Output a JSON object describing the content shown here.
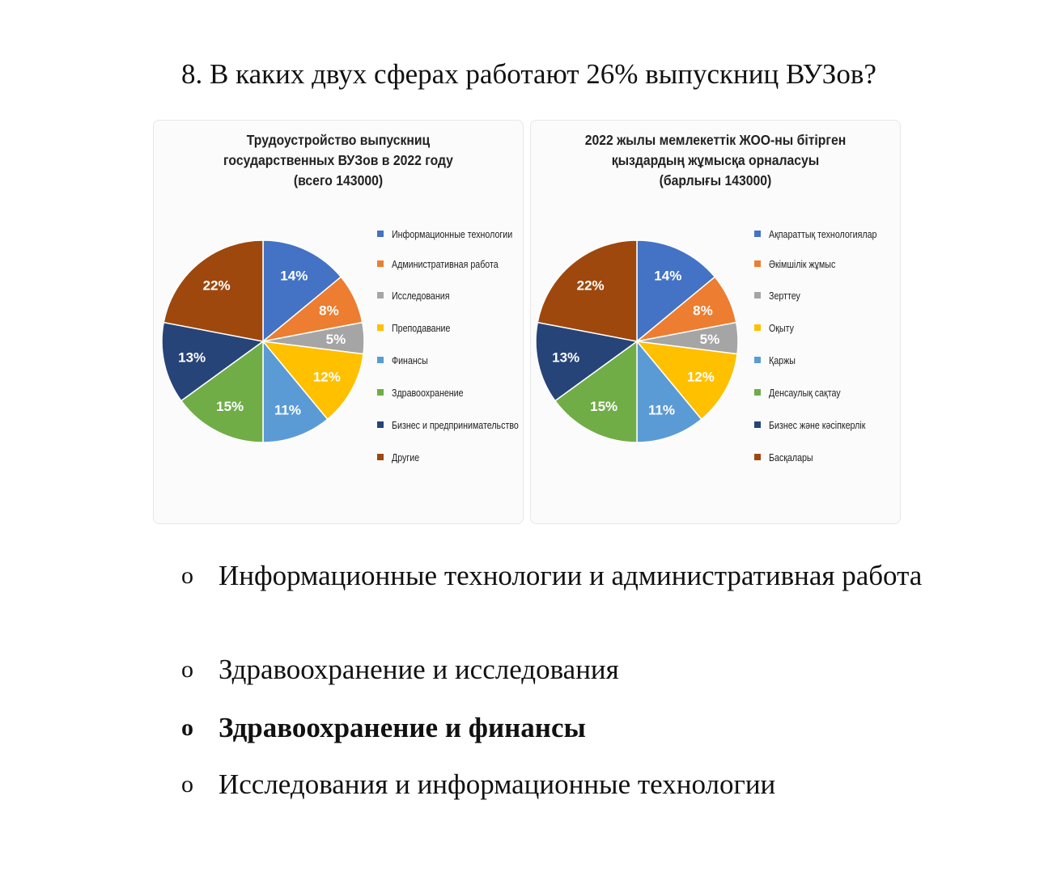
{
  "question": "8. В каких двух сферах работают 26% выпускниц ВУЗов?",
  "charts": [
    {
      "title_lines": [
        "Трудоустройство выпускниц",
        "государственных ВУЗов в 2022 году",
        "(всего 143000)"
      ],
      "legend": [
        "Информационные технологии",
        "Административная работа",
        "Исследования",
        "Преподавание",
        "Финансы",
        "Здравоохранение",
        "Бизнес и предпринимательство",
        "Другие"
      ]
    },
    {
      "title_lines": [
        "2022 жылы мемлекеттік ЖОО-ны бітірген",
        "қыздардың жұмысқа орналасуы",
        "(барлығы 143000)"
      ],
      "legend": [
        "Ақпараттық технологиялар",
        "Әкімшілік жұмыс",
        "Зерттеу",
        "Оқыту",
        "Қаржы",
        "Денсаулық сақтау",
        "Бизнес және кәсіпкерлік",
        "Басқалары"
      ]
    }
  ],
  "chart_data": [
    {
      "type": "pie",
      "title": "Трудоустройство выпускниц государственных ВУЗов в 2022 году (всего 143000)",
      "categories": [
        "Информационные технологии",
        "Административная работа",
        "Исследования",
        "Преподавание",
        "Финансы",
        "Здравоохранение",
        "Бизнес и предпринимательство",
        "Другие"
      ],
      "values": [
        14,
        8,
        5,
        12,
        11,
        15,
        13,
        22
      ],
      "labels": [
        "14%",
        "8%",
        "5%",
        "12%",
        "11%",
        "15%",
        "13%",
        "22%"
      ],
      "colors": [
        "#4472c4",
        "#ed7d31",
        "#a5a5a5",
        "#ffc000",
        "#5b9bd5",
        "#70ad47",
        "#264478",
        "#9e480e"
      ],
      "legend_position": "right"
    },
    {
      "type": "pie",
      "title": "2022 жылы мемлекеттік ЖОО-ны бітірген қыздардың жұмысқа орналасуы (барлығы 143000)",
      "categories": [
        "Ақпараттық технологиялар",
        "Әкімшілік жұмыс",
        "Зерттеу",
        "Оқыту",
        "Қаржы",
        "Денсаулық сақтау",
        "Бизнес және кәсіпкерлік",
        "Басқалары"
      ],
      "values": [
        14,
        8,
        5,
        12,
        11,
        15,
        13,
        22
      ],
      "labels": [
        "14%",
        "8%",
        "5%",
        "12%",
        "11%",
        "15%",
        "13%",
        "22%"
      ],
      "colors": [
        "#4472c4",
        "#ed7d31",
        "#a5a5a5",
        "#ffc000",
        "#5b9bd5",
        "#70ad47",
        "#264478",
        "#9e480e"
      ],
      "legend_position": "right"
    }
  ],
  "options": [
    {
      "bullet": "o",
      "text": "Информационные технологии и административная работа",
      "selected": false
    },
    {
      "bullet": "o",
      "text": "Здравоохранение и исследования",
      "selected": false
    },
    {
      "bullet": "o",
      "text": "Здравоохранение и финансы",
      "selected": true
    },
    {
      "bullet": "o",
      "text": "Исследования и информационные технологии",
      "selected": false
    }
  ]
}
